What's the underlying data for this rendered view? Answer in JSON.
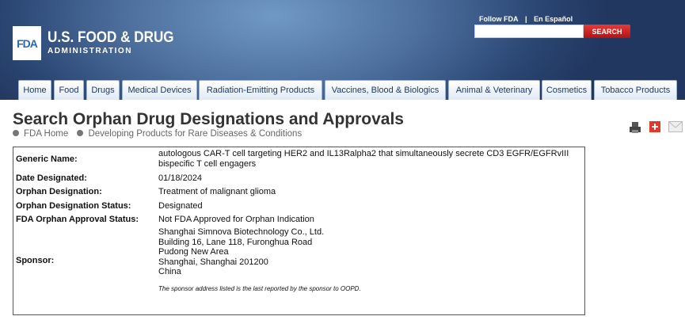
{
  "header": {
    "logo_text": "FDA",
    "title": "U.S. FOOD & DRUG",
    "subtitle": "ADMINISTRATION",
    "links": [
      "Follow FDA",
      "|",
      "En Español"
    ],
    "search_placeholder": "",
    "search_label": "SEARCH"
  },
  "nav": [
    "Home",
    "Food",
    "Drugs",
    "Medical Devices",
    "Radiation-Emitting Products",
    "Vaccines, Blood & Biologics",
    "Animal & Veterinary",
    "Cosmetics",
    "Tobacco Products"
  ],
  "page": {
    "title": "Search Orphan Drug Designations and Approvals",
    "breadcrumb": [
      "FDA Home",
      "Developing Products for Rare Diseases & Conditions"
    ],
    "icons": [
      "print-icon",
      "plus-icon",
      "email-icon"
    ]
  },
  "record": {
    "generic_label": "Generic Name:",
    "generic_lines": [
      "autologous CAR-T cell targeting HER2 and IL13Ralpha2 that simultaneously secrete CD3 EGFR/EGFRvIII",
      "bispecific T cell engagers"
    ],
    "date_label": "Date Designated:",
    "date": "01/18/2024",
    "designation_label": "Orphan Designation:",
    "designation": "Treatment of malignant glioma",
    "status_label": "Orphan Designation Status:",
    "status": "Designated",
    "approval_label": "FDA Orphan Approval Status:",
    "approval": "Not FDA Approved for Orphan Indication",
    "sponsor_label": "Sponsor:",
    "sponsor_lines": [
      "Shanghai Simnova Biotechnology Co., Ltd.",
      "Building 16, Lane 118, Furonghua Road",
      "Pudong New Area",
      "Shanghai, Shanghai 201200",
      "China"
    ],
    "note": "The sponsor address listed is the last reported by the sponsor to OOPD."
  }
}
